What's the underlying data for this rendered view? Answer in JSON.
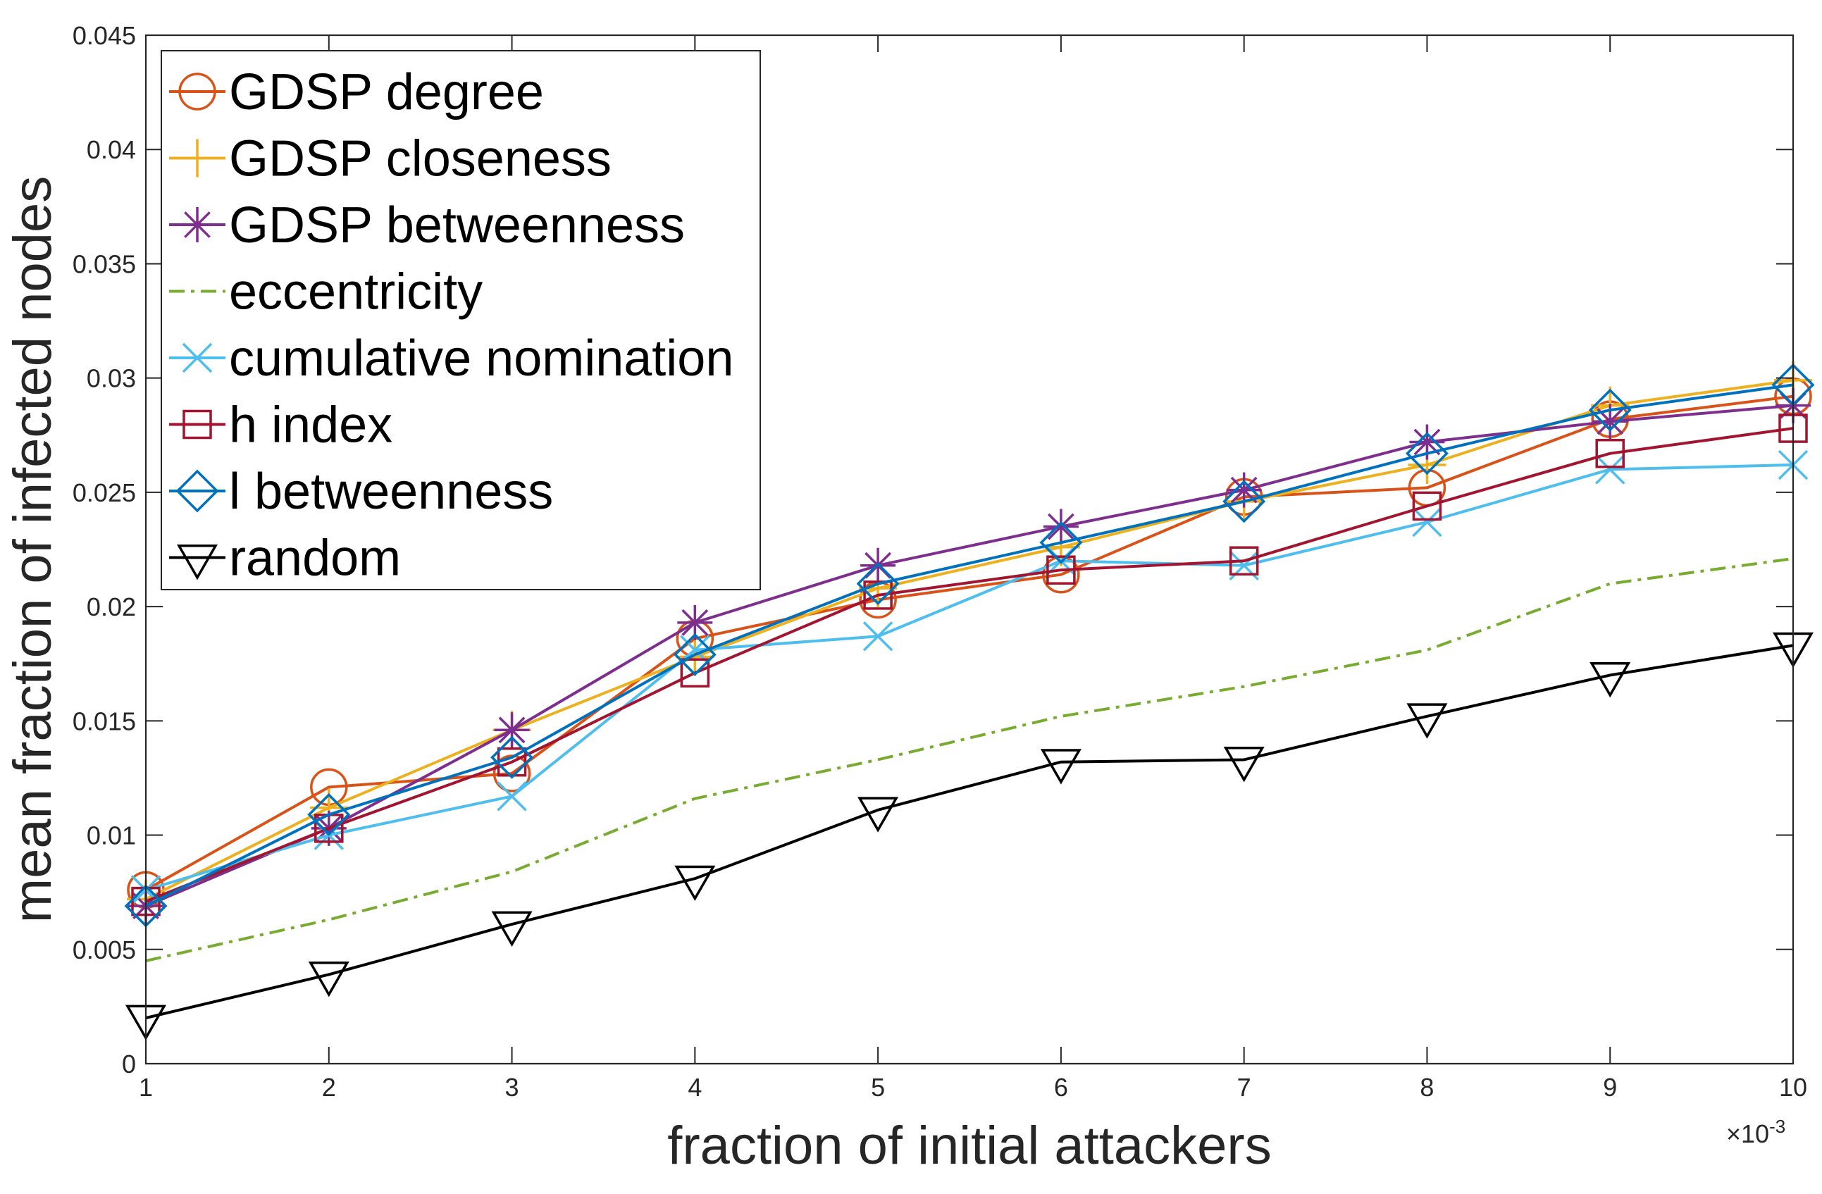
{
  "chart_data": {
    "type": "line",
    "xlabel": "fraction of initial attackers",
    "ylabel": "mean fraction of infected nodes",
    "x_multiplier_label": "×10",
    "x_multiplier_exponent": "-3",
    "x": [
      1,
      2,
      3,
      4,
      5,
      6,
      7,
      8,
      9,
      10
    ],
    "xlim": [
      1,
      10
    ],
    "ylim": [
      0,
      0.045
    ],
    "x_tick_labels": [
      "1",
      "2",
      "3",
      "4",
      "5",
      "6",
      "7",
      "8",
      "9",
      "10"
    ],
    "y_tick_labels": [
      "0",
      "0.005",
      "0.01",
      "0.015",
      "0.02",
      "0.025",
      "0.03",
      "0.035",
      "0.04",
      "0.045"
    ],
    "y_ticks": [
      0,
      0.005,
      0.01,
      0.015,
      0.02,
      0.025,
      0.03,
      0.035,
      0.04,
      0.045
    ],
    "grid": false,
    "legend_position": "top-left",
    "series": [
      {
        "name": "GDSP degree",
        "color": "#D95319",
        "marker": "circle",
        "dash": "solid",
        "values": [
          0.0076,
          0.0121,
          0.0127,
          0.0186,
          0.0203,
          0.0214,
          0.0248,
          0.0252,
          0.0282,
          0.0292
        ]
      },
      {
        "name": "GDSP closeness",
        "color": "#EDB120",
        "marker": "plus",
        "dash": "solid",
        "values": [
          0.0072,
          0.0112,
          0.0146,
          0.0178,
          0.0208,
          0.0226,
          0.0246,
          0.0262,
          0.0288,
          0.0299
        ]
      },
      {
        "name": "GDSP betweenness",
        "color": "#7E2F8E",
        "marker": "star",
        "dash": "solid",
        "values": [
          0.0069,
          0.0103,
          0.0146,
          0.0193,
          0.0218,
          0.0235,
          0.0251,
          0.0272,
          0.0281,
          0.0288
        ]
      },
      {
        "name": "eccentricity",
        "color": "#77AC30",
        "marker": "none",
        "dash": "dashdot",
        "values": [
          0.0045,
          0.0063,
          0.0084,
          0.0116,
          0.0133,
          0.0152,
          0.0165,
          0.0181,
          0.021,
          0.0221
        ]
      },
      {
        "name": "cumulative nomination",
        "color": "#4DBEEE",
        "marker": "x",
        "dash": "solid",
        "values": [
          0.0076,
          0.01,
          0.0117,
          0.0181,
          0.0187,
          0.022,
          0.0218,
          0.0237,
          0.026,
          0.0262
        ]
      },
      {
        "name": "h index",
        "color": "#A2142F",
        "marker": "square",
        "dash": "solid",
        "values": [
          0.0071,
          0.0103,
          0.0132,
          0.0171,
          0.0205,
          0.0216,
          0.022,
          0.0244,
          0.0267,
          0.0278
        ]
      },
      {
        "name": "l betweenness",
        "color": "#0072BD",
        "marker": "diamond",
        "dash": "solid",
        "values": [
          0.0069,
          0.0109,
          0.0134,
          0.0179,
          0.021,
          0.0228,
          0.0246,
          0.0267,
          0.0286,
          0.0297
        ]
      },
      {
        "name": "random",
        "color": "#000000",
        "marker": "triangle-down",
        "dash": "solid",
        "values": [
          0.002,
          0.0039,
          0.0061,
          0.0081,
          0.0111,
          0.0132,
          0.0133,
          0.0152,
          0.017,
          0.0183
        ]
      }
    ]
  }
}
